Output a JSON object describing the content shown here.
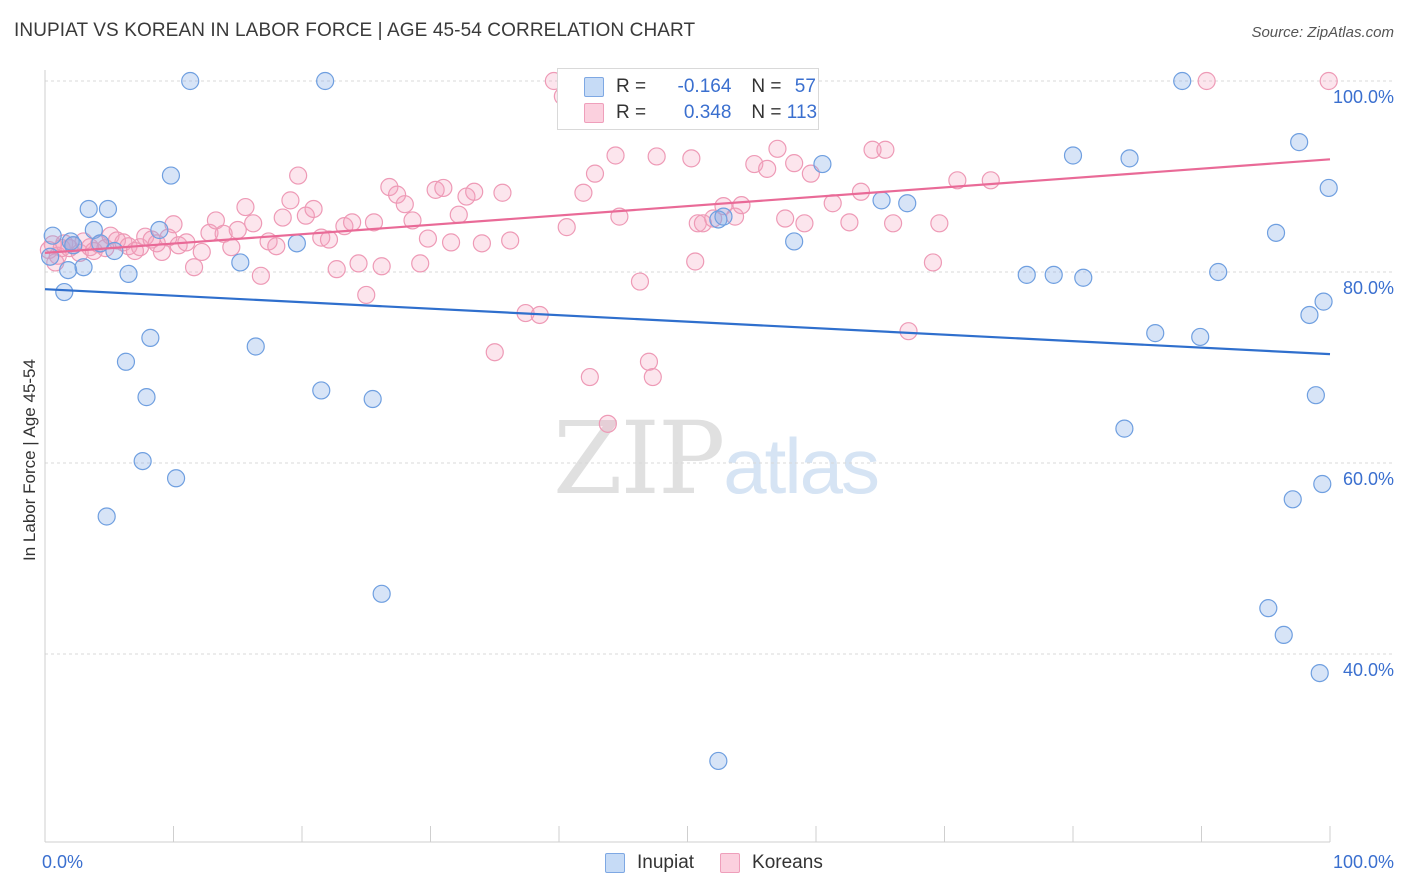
{
  "header": {
    "title": "INUPIAT VS KOREAN IN LABOR FORCE | AGE 45-54 CORRELATION CHART",
    "source": "Source: ZipAtlas.com"
  },
  "watermark": {
    "zip": "ZIP",
    "atlas": "atlas"
  },
  "legend": {
    "rows": [
      {
        "r_label": "R =",
        "r_value": "-0.164",
        "n_label": "N =",
        "n_value": "57"
      },
      {
        "r_label": "R =",
        "r_value": "0.348",
        "n_label": "N =",
        "n_value": "113"
      }
    ]
  },
  "chart_data": {
    "type": "scatter",
    "title": "INUPIAT VS KOREAN IN LABOR FORCE | AGE 45-54 CORRELATION CHART",
    "xlabel": "",
    "ylabel": "In Labor Force | Age 45-54",
    "xlim": [
      0,
      100
    ],
    "ylim": [
      20,
      102
    ],
    "x_tick_labels": [
      "0.0%",
      "100.0%"
    ],
    "y_ticks": [
      40,
      60,
      80,
      100
    ],
    "y_tick_labels": [
      "40.0%",
      "60.0%",
      "80.0%",
      "100.0%"
    ],
    "legend_placement": "bottom-center",
    "colors": {
      "inupiat": "#6f9fe0",
      "koreans": "#f09ab6",
      "inupiat_line": "#2f6fcd",
      "koreans_line": "#e96a97"
    },
    "series": [
      {
        "name": "Inupiat",
        "trend": {
          "x": [
            0,
            100
          ],
          "y": [
            78.2,
            71.4
          ]
        },
        "points": [
          [
            0.6,
            83.8
          ],
          [
            0.4,
            81.6
          ],
          [
            1.5,
            77.9
          ],
          [
            1.8,
            80.2
          ],
          [
            2.0,
            83.2
          ],
          [
            2.2,
            82.8
          ],
          [
            3.0,
            80.5
          ],
          [
            3.4,
            86.6
          ],
          [
            3.8,
            84.4
          ],
          [
            4.3,
            83.0
          ],
          [
            4.9,
            86.6
          ],
          [
            5.4,
            82.2
          ],
          [
            6.3,
            70.6
          ],
          [
            6.5,
            79.8
          ],
          [
            7.6,
            60.2
          ],
          [
            7.9,
            66.9
          ],
          [
            8.2,
            73.1
          ],
          [
            8.9,
            84.4
          ],
          [
            9.8,
            90.1
          ],
          [
            10.2,
            58.4
          ],
          [
            11.3,
            100.0
          ],
          [
            4.8,
            54.4
          ],
          [
            15.2,
            81.0
          ],
          [
            16.4,
            72.2
          ],
          [
            19.6,
            83.0
          ],
          [
            21.5,
            67.6
          ],
          [
            21.8,
            100.0
          ],
          [
            25.5,
            66.7
          ],
          [
            26.2,
            46.3
          ],
          [
            52.4,
            28.8
          ],
          [
            52.4,
            85.5
          ],
          [
            52.8,
            85.8
          ],
          [
            58.3,
            83.2
          ],
          [
            60.5,
            91.3
          ],
          [
            65.1,
            87.5
          ],
          [
            67.1,
            87.2
          ],
          [
            76.4,
            79.7
          ],
          [
            78.5,
            79.7
          ],
          [
            80.8,
            79.4
          ],
          [
            84.4,
            91.9
          ],
          [
            80.0,
            92.2
          ],
          [
            99.2,
            38.0
          ],
          [
            84.0,
            63.6
          ],
          [
            86.4,
            73.6
          ],
          [
            88.5,
            100.0
          ],
          [
            89.9,
            73.2
          ],
          [
            91.3,
            80.0
          ],
          [
            95.8,
            84.1
          ],
          [
            95.2,
            44.8
          ],
          [
            96.4,
            42.0
          ],
          [
            97.1,
            56.2
          ],
          [
            97.6,
            93.6
          ],
          [
            98.4,
            75.5
          ],
          [
            98.9,
            67.1
          ],
          [
            99.4,
            57.8
          ],
          [
            99.5,
            76.9
          ],
          [
            99.9,
            88.8
          ]
        ]
      },
      {
        "name": "Koreans",
        "trend": {
          "x": [
            0,
            100
          ],
          "y": [
            82.0,
            91.8
          ]
        },
        "points": [
          [
            0.3,
            82.3
          ],
          [
            0.6,
            82.9
          ],
          [
            1.0,
            81.7
          ],
          [
            1.3,
            82.5
          ],
          [
            1.5,
            83.0
          ],
          [
            1.9,
            82.5
          ],
          [
            2.2,
            82.8
          ],
          [
            2.7,
            82.0
          ],
          [
            3.0,
            83.2
          ],
          [
            3.5,
            82.6
          ],
          [
            3.8,
            82.2
          ],
          [
            4.2,
            82.9
          ],
          [
            4.7,
            82.5
          ],
          [
            5.1,
            83.8
          ],
          [
            5.6,
            83.3
          ],
          [
            6.1,
            83.1
          ],
          [
            6.5,
            82.7
          ],
          [
            7.0,
            82.2
          ],
          [
            7.4,
            82.6
          ],
          [
            7.8,
            83.7
          ],
          [
            8.3,
            83.4
          ],
          [
            8.7,
            83.0
          ],
          [
            9.1,
            82.1
          ],
          [
            9.6,
            83.6
          ],
          [
            10.0,
            85.0
          ],
          [
            10.4,
            82.8
          ],
          [
            11.0,
            83.1
          ],
          [
            11.6,
            80.5
          ],
          [
            12.2,
            82.1
          ],
          [
            12.8,
            84.1
          ],
          [
            13.3,
            85.4
          ],
          [
            13.9,
            84.0
          ],
          [
            14.5,
            82.6
          ],
          [
            15.0,
            84.4
          ],
          [
            15.6,
            86.8
          ],
          [
            16.2,
            85.1
          ],
          [
            16.8,
            79.6
          ],
          [
            17.4,
            83.2
          ],
          [
            18.0,
            82.7
          ],
          [
            18.5,
            85.7
          ],
          [
            19.1,
            87.5
          ],
          [
            19.7,
            90.1
          ],
          [
            20.3,
            85.9
          ],
          [
            20.9,
            86.6
          ],
          [
            21.5,
            83.6
          ],
          [
            22.1,
            83.4
          ],
          [
            22.7,
            80.3
          ],
          [
            23.3,
            84.8
          ],
          [
            23.9,
            85.2
          ],
          [
            24.4,
            80.9
          ],
          [
            25.0,
            77.6
          ],
          [
            25.6,
            85.2
          ],
          [
            26.2,
            80.6
          ],
          [
            26.8,
            88.9
          ],
          [
            27.4,
            88.1
          ],
          [
            28.0,
            87.1
          ],
          [
            28.6,
            85.4
          ],
          [
            29.2,
            80.9
          ],
          [
            29.8,
            83.5
          ],
          [
            30.4,
            88.6
          ],
          [
            31.0,
            88.8
          ],
          [
            31.6,
            83.1
          ],
          [
            32.2,
            86.0
          ],
          [
            32.8,
            87.9
          ],
          [
            33.4,
            88.4
          ],
          [
            34.0,
            83.0
          ],
          [
            35.0,
            71.6
          ],
          [
            35.6,
            88.3
          ],
          [
            36.2,
            83.3
          ],
          [
            37.4,
            75.7
          ],
          [
            38.5,
            75.5
          ],
          [
            39.6,
            100.0
          ],
          [
            40.3,
            98.4
          ],
          [
            40.6,
            84.7
          ],
          [
            41.9,
            88.3
          ],
          [
            42.4,
            69.0
          ],
          [
            42.8,
            90.3
          ],
          [
            43.8,
            64.1
          ],
          [
            44.4,
            92.2
          ],
          [
            44.7,
            85.8
          ],
          [
            46.3,
            79.0
          ],
          [
            47.0,
            70.6
          ],
          [
            47.3,
            69.0
          ],
          [
            47.6,
            92.1
          ],
          [
            50.3,
            91.9
          ],
          [
            50.6,
            81.1
          ],
          [
            50.8,
            85.1
          ],
          [
            51.2,
            85.1
          ],
          [
            52.0,
            85.6
          ],
          [
            52.8,
            86.9
          ],
          [
            53.7,
            85.8
          ],
          [
            54.2,
            87.0
          ],
          [
            55.2,
            91.3
          ],
          [
            56.2,
            90.8
          ],
          [
            57.0,
            92.9
          ],
          [
            57.6,
            85.6
          ],
          [
            58.3,
            91.4
          ],
          [
            59.1,
            85.1
          ],
          [
            59.6,
            90.3
          ],
          [
            61.3,
            87.2
          ],
          [
            62.6,
            85.2
          ],
          [
            63.5,
            88.4
          ],
          [
            64.4,
            92.8
          ],
          [
            65.4,
            92.8
          ],
          [
            66.0,
            85.1
          ],
          [
            67.2,
            73.8
          ],
          [
            69.1,
            81.0
          ],
          [
            69.6,
            85.1
          ],
          [
            71.0,
            89.6
          ],
          [
            73.6,
            89.6
          ],
          [
            90.4,
            100.0
          ],
          [
            99.9,
            100.0
          ],
          [
            0.8,
            81.0
          ]
        ]
      }
    ]
  }
}
